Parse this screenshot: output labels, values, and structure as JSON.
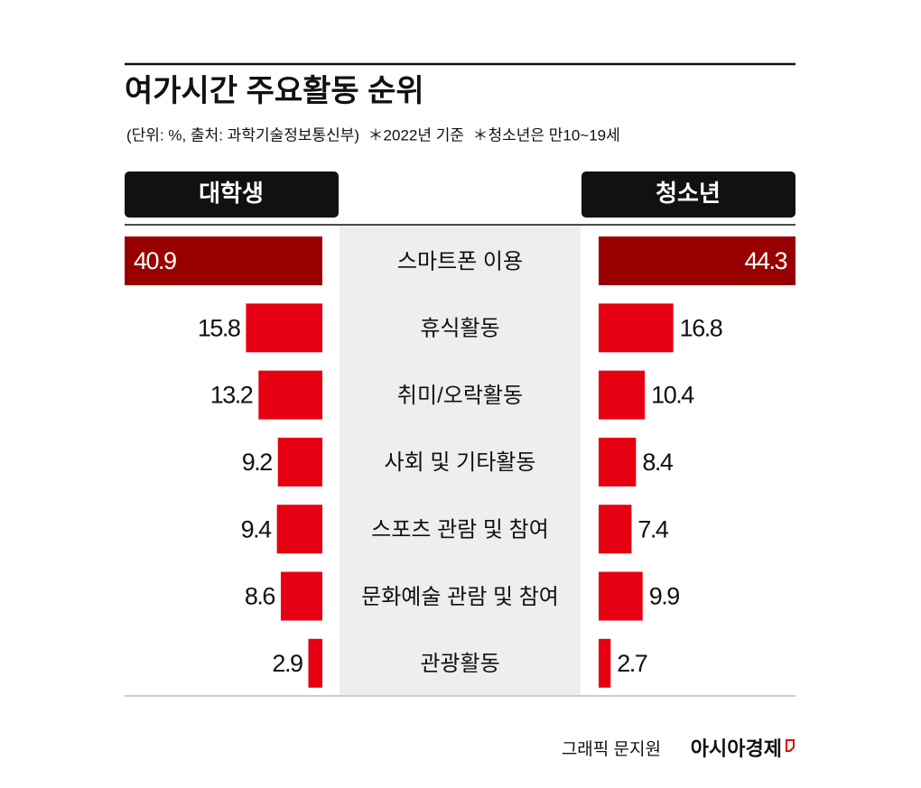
{
  "chart_data": {
    "type": "butterfly-bar",
    "title": "여가시간 주요활동 순위",
    "subtitle": "(단위: %, 출처: 과학기술정보통신부)  ＊2022년 기준  ＊청소년은 만10~19세",
    "categories": [
      "스마트폰 이용",
      "휴식활동",
      "취미/오락활동",
      "사회 및 기타활동",
      "스포츠 관람 및 참여",
      "문화예술 관람 및 참여",
      "관광활동"
    ],
    "series": [
      {
        "name": "대학생",
        "color": "#e60012",
        "values": [
          40.9,
          15.8,
          13.2,
          9.2,
          9.4,
          8.6,
          2.9
        ]
      },
      {
        "name": "청소년",
        "color": "#e60012",
        "values": [
          44.3,
          16.8,
          10.4,
          8.4,
          7.4,
          9.9,
          2.7
        ]
      }
    ],
    "highlight_color": "#990000",
    "credit": "그래픽 문지원",
    "brand": "아시아경제"
  }
}
